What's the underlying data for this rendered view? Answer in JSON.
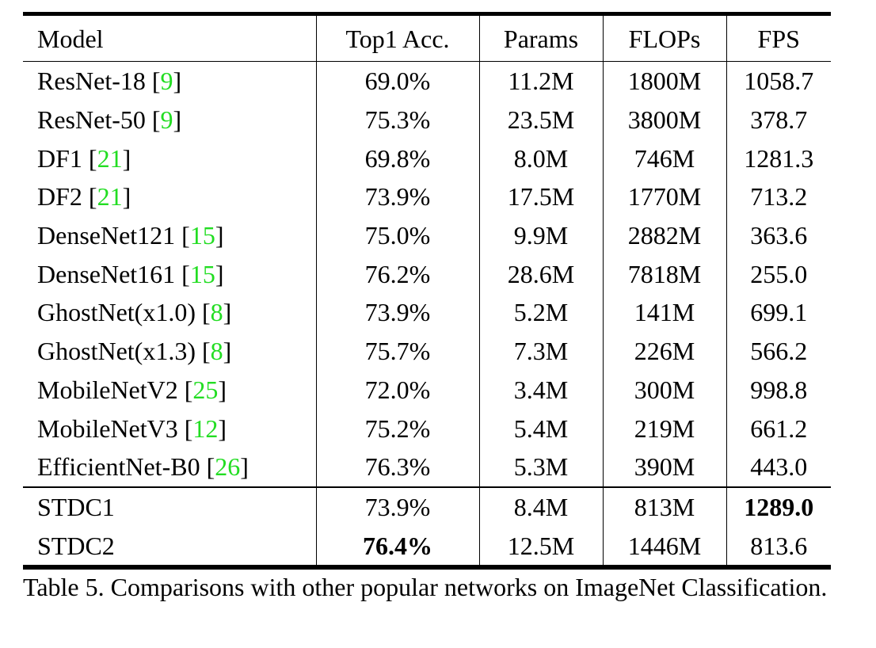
{
  "table": {
    "headers": [
      "Model",
      "Top1 Acc.",
      "Params",
      "FLOPs",
      "FPS"
    ],
    "rows": [
      {
        "model": "ResNet-18",
        "cite": "9",
        "acc": "69.0%",
        "params": "11.2M",
        "flops": "1800M",
        "fps": "1058.7"
      },
      {
        "model": "ResNet-50",
        "cite": "9",
        "acc": "75.3%",
        "params": "23.5M",
        "flops": "3800M",
        "fps": "378.7"
      },
      {
        "model": "DF1",
        "cite": "21",
        "acc": "69.8%",
        "params": "8.0M",
        "flops": "746M",
        "fps": "1281.3"
      },
      {
        "model": "DF2",
        "cite": "21",
        "acc": "73.9%",
        "params": "17.5M",
        "flops": "1770M",
        "fps": "713.2"
      },
      {
        "model": "DenseNet121",
        "cite": "15",
        "acc": "75.0%",
        "params": "9.9M",
        "flops": "2882M",
        "fps": "363.6"
      },
      {
        "model": "DenseNet161",
        "cite": "15",
        "acc": "76.2%",
        "params": "28.6M",
        "flops": "7818M",
        "fps": "255.0"
      },
      {
        "model": "GhostNet(x1.0)",
        "cite": "8",
        "acc": "73.9%",
        "params": "5.2M",
        "flops": "141M",
        "fps": "699.1"
      },
      {
        "model": "GhostNet(x1.3)",
        "cite": "8",
        "acc": "75.7%",
        "params": "7.3M",
        "flops": "226M",
        "fps": "566.2"
      },
      {
        "model": "MobileNetV2",
        "cite": "25",
        "acc": "72.0%",
        "params": "3.4M",
        "flops": "300M",
        "fps": "998.8"
      },
      {
        "model": "MobileNetV3",
        "cite": "12",
        "acc": "75.2%",
        "params": "5.4M",
        "flops": "219M",
        "fps": "661.2"
      },
      {
        "model": "EfficientNet-B0",
        "cite": "26",
        "acc": "76.3%",
        "params": "5.3M",
        "flops": "390M",
        "fps": "443.0"
      },
      {
        "model": "STDC1",
        "cite": "",
        "acc": "73.9%",
        "params": "8.4M",
        "flops": "813M",
        "fps": "1289.0",
        "bold": "fps"
      },
      {
        "model": "STDC2",
        "cite": "",
        "acc": "76.4%",
        "params": "12.5M",
        "flops": "1446M",
        "fps": "813.6",
        "bold": "acc"
      }
    ]
  },
  "citation_color": "#22dd22",
  "caption": "Table 5. Comparisons with other popular networks on ImageNet Classification."
}
